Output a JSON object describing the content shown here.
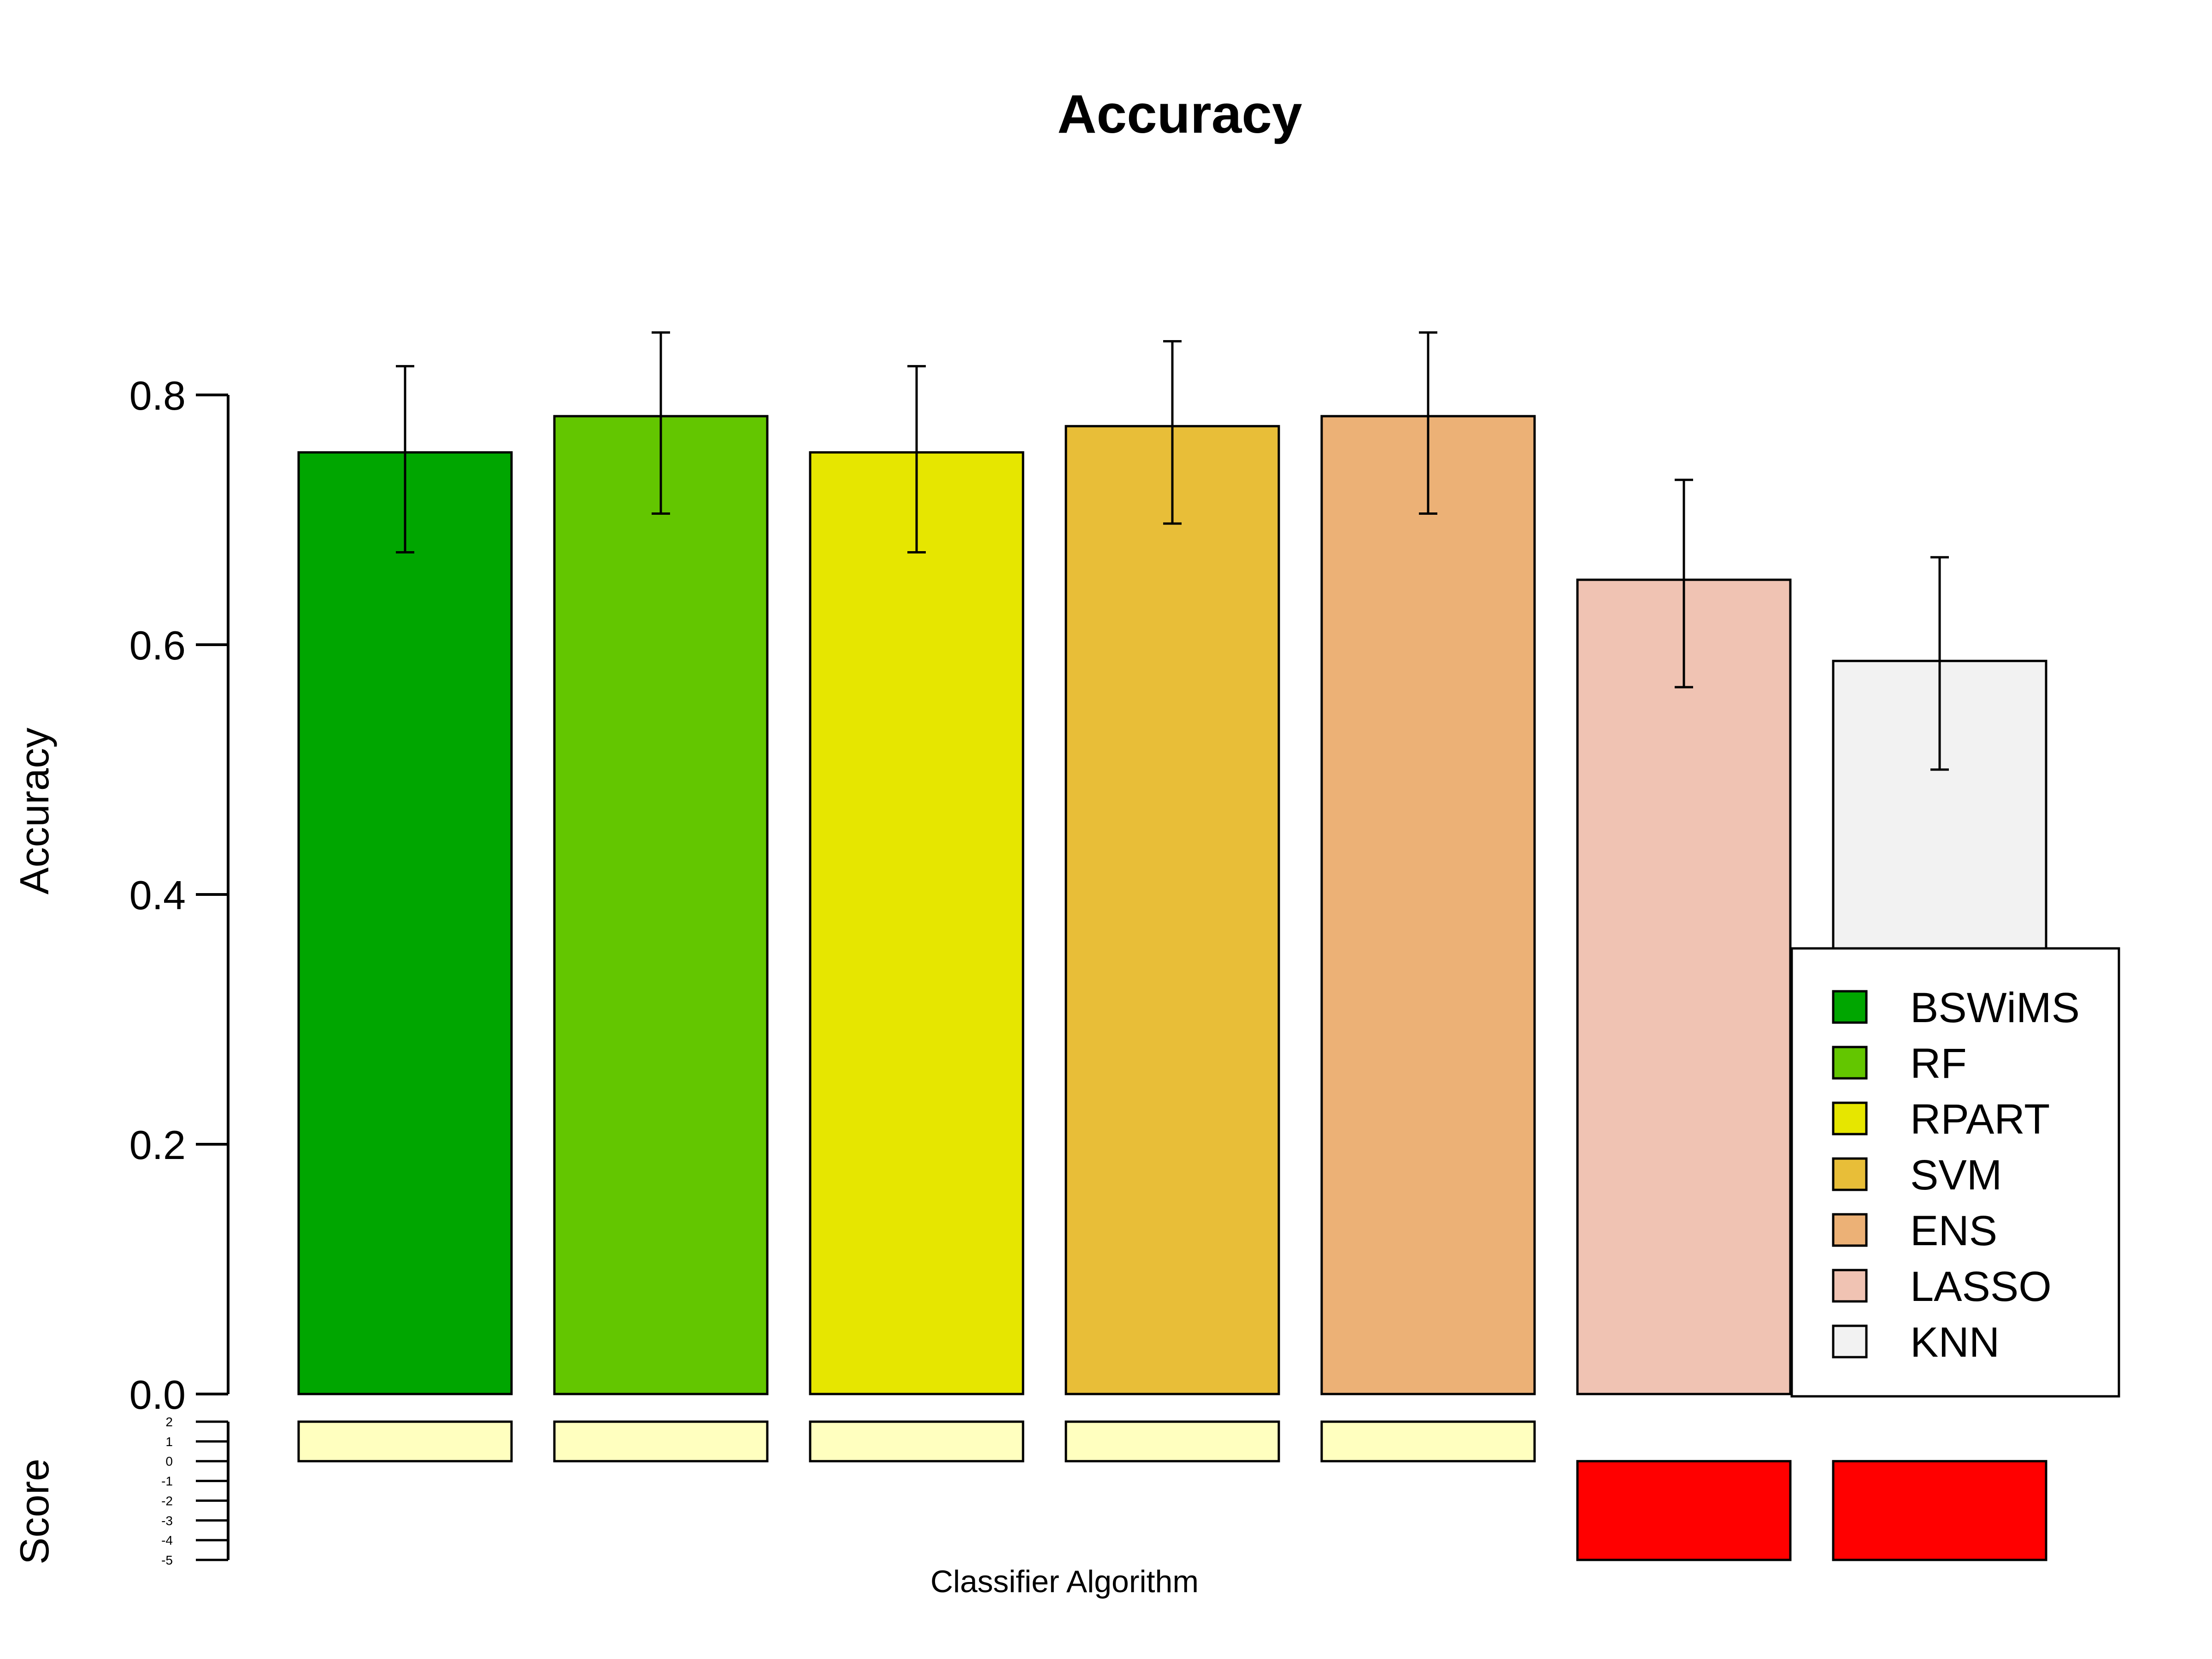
{
  "chart_data": {
    "type": "bar",
    "title": "Accuracy",
    "ylabel": "Accuracy",
    "xlabel": "Classifier Algorithm",
    "ylim": [
      0,
      0.9
    ],
    "yticks": [
      "0.0",
      "0.2",
      "0.4",
      "0.6",
      "0.8"
    ],
    "categories": [
      "BSWiMS",
      "RF",
      "RPART",
      "SVM",
      "ENS",
      "LASSO",
      "KNN"
    ],
    "values": [
      0.754,
      0.783,
      0.754,
      0.775,
      0.783,
      0.652,
      0.587
    ],
    "error_low": [
      0.674,
      0.705,
      0.674,
      0.697,
      0.705,
      0.566,
      0.5
    ],
    "error_high": [
      0.823,
      0.85,
      0.823,
      0.843,
      0.85,
      0.732,
      0.67
    ],
    "colors": [
      "#00A600",
      "#63C600",
      "#E6E600",
      "#E8BE38",
      "#ECB176",
      "#F0C3B3",
      "#F2F2F2"
    ],
    "legend": {
      "placement": "bottom-right",
      "entries": [
        "BSWiMS",
        "RF",
        "RPART",
        "SVM",
        "ENS",
        "LASSO",
        "KNN"
      ]
    },
    "score_panel": {
      "ylabel": "Score",
      "ylim": [
        -5,
        2
      ],
      "yticks": [
        "2",
        "1",
        "0",
        "-1",
        "-2",
        "-3",
        "-4",
        "-5"
      ],
      "values": [
        2,
        2,
        2,
        2,
        2,
        -5,
        -5
      ],
      "colors": [
        "#FFFFBF",
        "#FFFFBF",
        "#FFFFBF",
        "#FFFFBF",
        "#FFFFBF",
        "#FF0000",
        "#FF0000"
      ]
    }
  }
}
